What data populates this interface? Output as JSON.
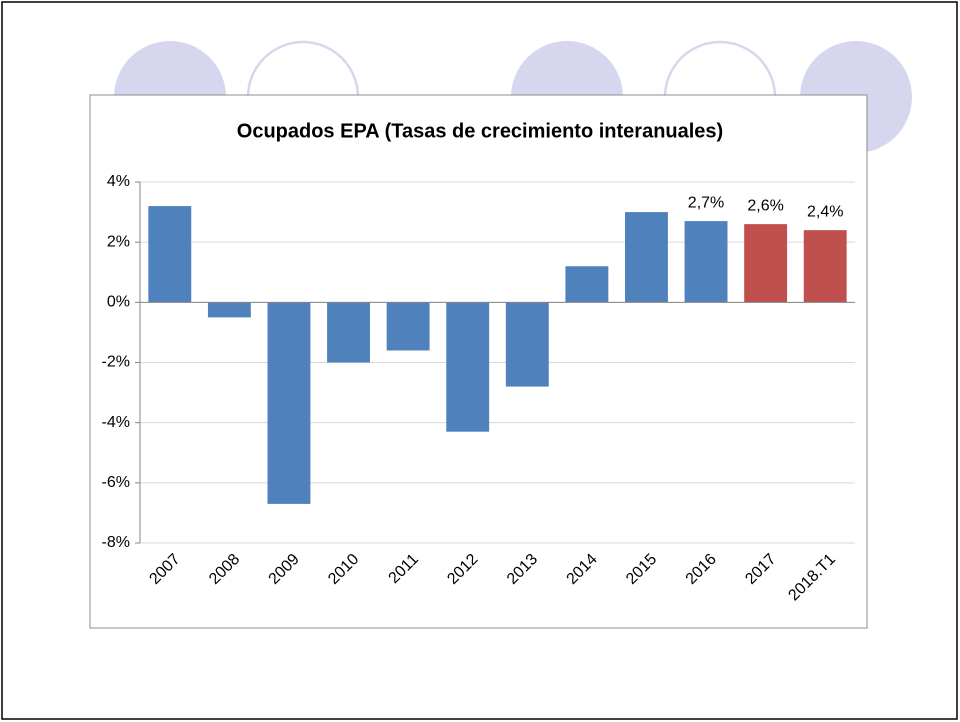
{
  "chart_data": {
    "type": "bar",
    "title": "Ocupados  EPA (Tasas de crecimiento interanuales)",
    "categories": [
      "2007",
      "2008",
      "2009",
      "2010",
      "2011",
      "2012",
      "2013",
      "2014",
      "2015",
      "2016",
      "2017",
      "2018.T1"
    ],
    "values": [
      3.2,
      -0.5,
      -6.7,
      -2.0,
      -1.6,
      -4.3,
      -2.8,
      1.2,
      3.0,
      2.7,
      2.6,
      2.4
    ],
    "value_labels": [
      null,
      null,
      null,
      null,
      null,
      null,
      null,
      null,
      null,
      "2,7%",
      "2,6%",
      "2,4%"
    ],
    "colors": [
      "#4f81bd",
      "#4f81bd",
      "#4f81bd",
      "#4f81bd",
      "#4f81bd",
      "#4f81bd",
      "#4f81bd",
      "#4f81bd",
      "#4f81bd",
      "#4f81bd",
      "#c0504d",
      "#c0504d"
    ],
    "ylim": [
      -8,
      4
    ],
    "yticks": [
      {
        "value": -8,
        "label": "-8%"
      },
      {
        "value": -6,
        "label": "-6%"
      },
      {
        "value": -4,
        "label": "-4%"
      },
      {
        "value": -2,
        "label": "-2%"
      },
      {
        "value": 0,
        "label": "0%"
      },
      {
        "value": 2,
        "label": "2%"
      },
      {
        "value": 4,
        "label": "4%"
      }
    ],
    "grid": true
  }
}
